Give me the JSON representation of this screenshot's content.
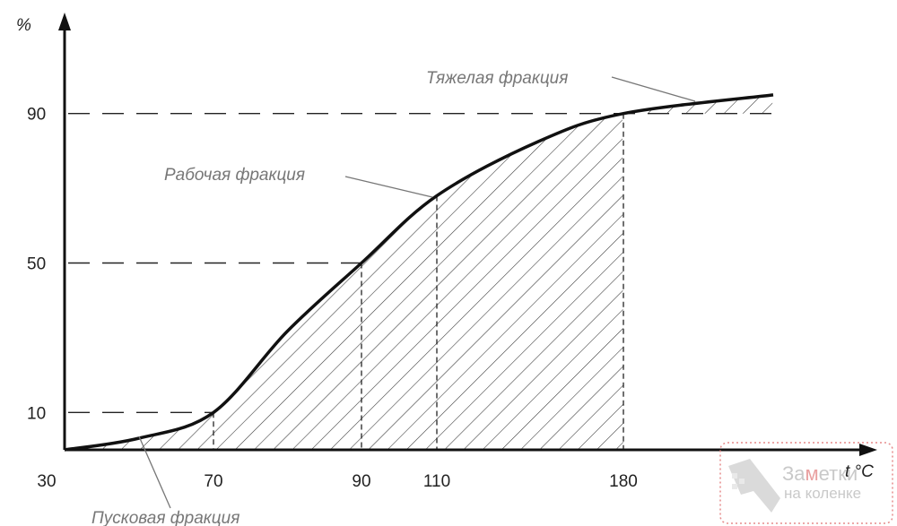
{
  "chart_data": {
    "type": "area",
    "xlabel": "t °C",
    "ylabel": "%",
    "x_ticks": [
      "30",
      "70",
      "90",
      "110",
      "180"
    ],
    "y_ticks": [
      "10",
      "50",
      "90"
    ],
    "curve": [
      {
        "x": "30",
        "y": 0
      },
      {
        "x": "70",
        "y": 10
      },
      {
        "x": "90",
        "y": 50
      },
      {
        "x": "110",
        "y": 68
      },
      {
        "x": "180",
        "y": 90
      }
    ],
    "annotations": [
      {
        "id": "heavy",
        "label": "Тяжелая фракция"
      },
      {
        "id": "working",
        "label": "Рабочая фракция"
      },
      {
        "id": "starting",
        "label": "Пусковая фракция"
      }
    ],
    "grid": false
  },
  "watermark": {
    "line1_pre": "За",
    "line1_m": "м",
    "line1_post": "етки",
    "line2": "на коленке"
  }
}
